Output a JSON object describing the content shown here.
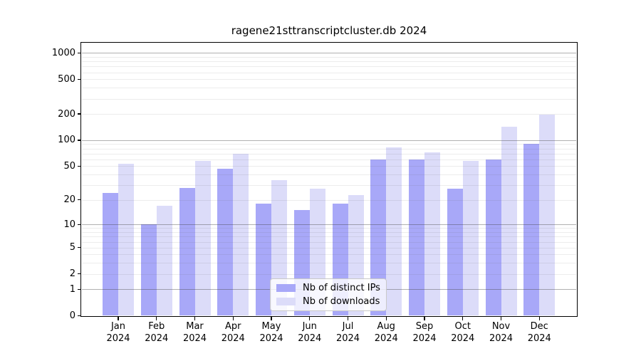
{
  "title": "ragene21sttranscriptcluster.db 2024",
  "colors": {
    "distinct_ips_bar": "#a8a8f8",
    "downloads_bar": "#dcdcf9",
    "grid_major": "#a0a0a0",
    "grid_minor": "#ebebeb",
    "axis": "#000000"
  },
  "legend": {
    "items": [
      {
        "label": "Nb of distinct IPs",
        "series": "distinct_ips"
      },
      {
        "label": "Nb of downloads",
        "series": "downloads"
      }
    ],
    "position": "lower center"
  },
  "chart_data": {
    "type": "bar",
    "title": "ragene21sttranscriptcluster.db 2024",
    "categories": [
      "Jan 2024",
      "Feb 2024",
      "Mar 2024",
      "Apr 2024",
      "May 2024",
      "Jun 2024",
      "Jul 2024",
      "Aug 2024",
      "Sep 2024",
      "Oct 2024",
      "Nov 2024",
      "Dec 2024"
    ],
    "x_tick_line1": [
      "Jan",
      "Feb",
      "Mar",
      "Apr",
      "May",
      "Jun",
      "Jul",
      "Aug",
      "Sep",
      "Oct",
      "Nov",
      "Dec"
    ],
    "x_tick_line2": "2024",
    "series": [
      {
        "name": "Nb of distinct IPs",
        "color": "#a8a8f8",
        "values": [
          24,
          10,
          28,
          47,
          18,
          15,
          18,
          60,
          60,
          27,
          60,
          90
        ]
      },
      {
        "name": "Nb of downloads",
        "color": "#dcdcf9",
        "values": [
          53,
          17,
          58,
          70,
          34,
          27,
          23,
          83,
          72,
          57,
          144,
          196
        ]
      }
    ],
    "xlabel": "",
    "ylabel": "",
    "yscale": "log1p",
    "yticks": [
      0,
      1,
      2,
      5,
      10,
      20,
      50,
      100,
      200,
      500,
      1000
    ],
    "ylim": [
      0,
      1300
    ],
    "grid": true,
    "grid_above_bars": true,
    "legend_position": "lower center"
  }
}
